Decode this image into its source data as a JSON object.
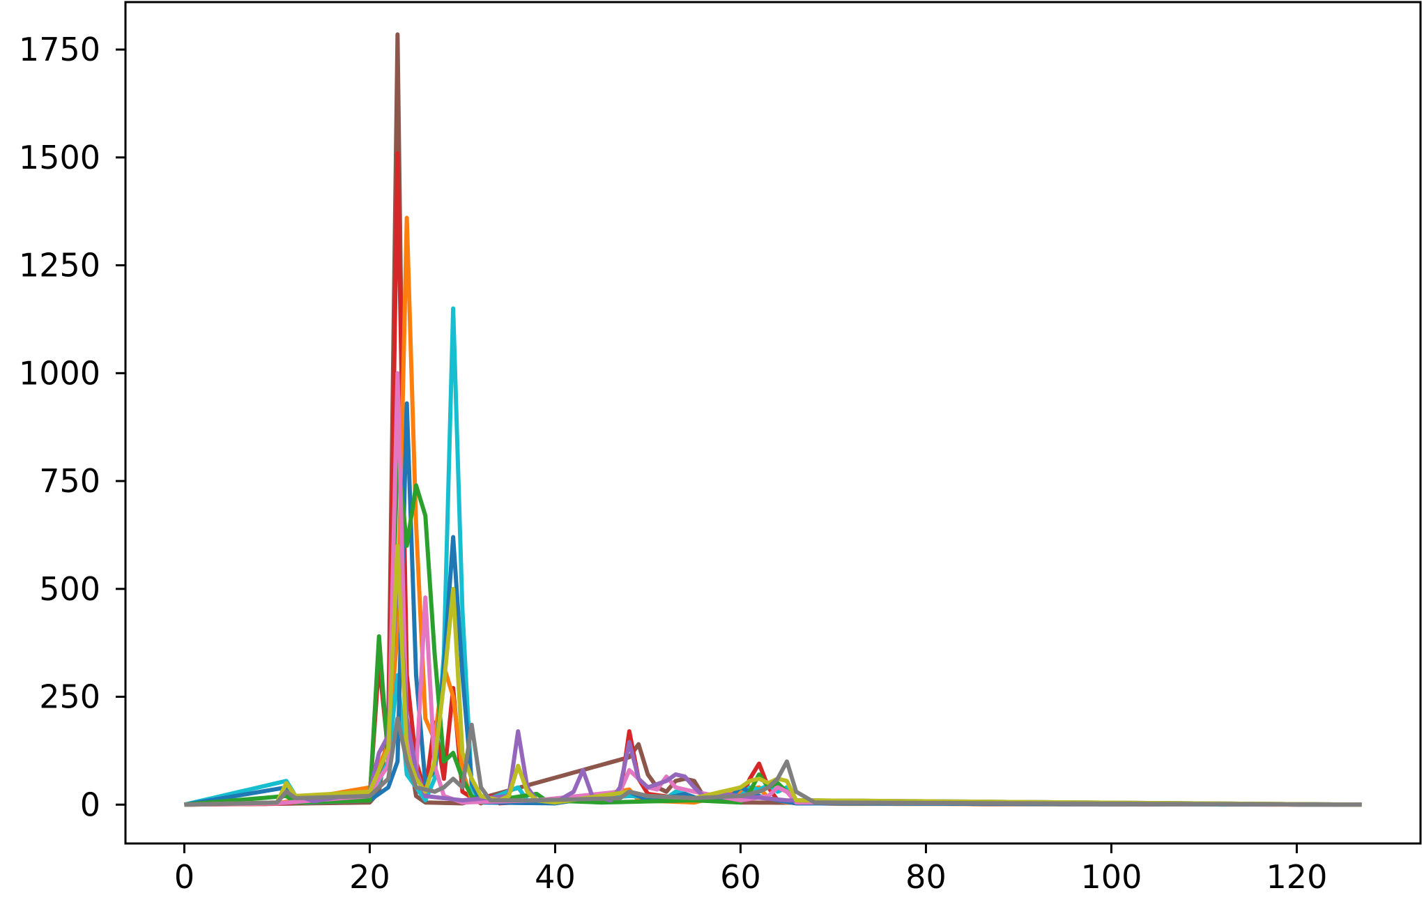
{
  "chart_data": {
    "type": "line",
    "title": "",
    "xlabel": "",
    "ylabel": "",
    "xlim": [
      -6.35,
      133.35
    ],
    "ylim": [
      -90,
      1860
    ],
    "x_ticks": [
      0,
      20,
      40,
      60,
      80,
      100,
      120
    ],
    "x_tick_labels": [
      "0",
      "20",
      "40",
      "60",
      "80",
      "100",
      "120"
    ],
    "y_ticks": [
      0,
      250,
      500,
      750,
      1000,
      1250,
      1500,
      1750
    ],
    "y_tick_labels": [
      "0",
      "250",
      "500",
      "750",
      "1000",
      "1250",
      "1500",
      "1750"
    ],
    "grid": false,
    "legend": "none",
    "x_range": [
      0,
      127
    ],
    "series": [
      {
        "color": "#8c564b",
        "points": [
          [
            0,
            0
          ],
          [
            10,
            2
          ],
          [
            20,
            5
          ],
          [
            21,
            30
          ],
          [
            22,
            180
          ],
          [
            23,
            1785
          ],
          [
            24,
            150
          ],
          [
            25,
            20
          ],
          [
            26,
            5
          ],
          [
            30,
            3
          ],
          [
            48,
            110
          ],
          [
            49,
            140
          ],
          [
            50,
            70
          ],
          [
            51,
            40
          ],
          [
            52,
            30
          ],
          [
            53,
            55
          ],
          [
            54,
            60
          ],
          [
            55,
            55
          ],
          [
            56,
            20
          ],
          [
            60,
            5
          ],
          [
            80,
            3
          ],
          [
            82,
            4
          ],
          [
            85,
            1
          ],
          [
            127,
            0
          ]
        ]
      },
      {
        "color": "#d62728",
        "points": [
          [
            0,
            0
          ],
          [
            10,
            2
          ],
          [
            20,
            20
          ],
          [
            21,
            330
          ],
          [
            22,
            120
          ],
          [
            23,
            1510
          ],
          [
            24,
            300
          ],
          [
            25,
            100
          ],
          [
            26,
            30
          ],
          [
            27,
            190
          ],
          [
            28,
            60
          ],
          [
            29,
            270
          ],
          [
            30,
            30
          ],
          [
            32,
            3
          ],
          [
            33,
            20
          ],
          [
            34,
            3
          ],
          [
            47,
            20
          ],
          [
            48,
            170
          ],
          [
            49,
            60
          ],
          [
            50,
            25
          ],
          [
            55,
            10
          ],
          [
            60,
            10
          ],
          [
            61,
            60
          ],
          [
            62,
            95
          ],
          [
            63,
            40
          ],
          [
            64,
            10
          ],
          [
            66,
            3
          ],
          [
            127,
            0
          ]
        ]
      },
      {
        "color": "#ff7f0e",
        "points": [
          [
            0,
            0
          ],
          [
            10,
            3
          ],
          [
            20,
            40
          ],
          [
            21,
            90
          ],
          [
            22,
            140
          ],
          [
            23,
            400
          ],
          [
            24,
            1360
          ],
          [
            25,
            650
          ],
          [
            26,
            200
          ],
          [
            27,
            150
          ],
          [
            28,
            320
          ],
          [
            29,
            250
          ],
          [
            30,
            80
          ],
          [
            31,
            10
          ],
          [
            35,
            5
          ],
          [
            40,
            5
          ],
          [
            48,
            35
          ],
          [
            49,
            10
          ],
          [
            55,
            5
          ],
          [
            62,
            40
          ],
          [
            63,
            15
          ],
          [
            65,
            5
          ],
          [
            70,
            2
          ],
          [
            127,
            0
          ]
        ]
      },
      {
        "color": "#17becf",
        "points": [
          [
            0,
            0
          ],
          [
            11,
            55
          ],
          [
            12,
            20
          ],
          [
            13,
            5
          ],
          [
            20,
            10
          ],
          [
            22,
            100
          ],
          [
            23,
            300
          ],
          [
            24,
            70
          ],
          [
            26,
            10
          ],
          [
            27,
            60
          ],
          [
            28,
            350
          ],
          [
            29,
            1150
          ],
          [
            30,
            450
          ],
          [
            31,
            40
          ],
          [
            32,
            5
          ],
          [
            36,
            40
          ],
          [
            37,
            10
          ],
          [
            40,
            5
          ],
          [
            48,
            20
          ],
          [
            52,
            15
          ],
          [
            53,
            30
          ],
          [
            54,
            25
          ],
          [
            55,
            10
          ],
          [
            60,
            20
          ],
          [
            61,
            40
          ],
          [
            62,
            35
          ],
          [
            63,
            45
          ],
          [
            64,
            30
          ],
          [
            65,
            40
          ],
          [
            66,
            10
          ],
          [
            70,
            3
          ],
          [
            127,
            0
          ]
        ]
      },
      {
        "color": "#1f77b4",
        "points": [
          [
            0,
            0
          ],
          [
            11,
            40
          ],
          [
            12,
            10
          ],
          [
            20,
            10
          ],
          [
            22,
            40
          ],
          [
            23,
            100
          ],
          [
            24,
            930
          ],
          [
            25,
            300
          ],
          [
            26,
            50
          ],
          [
            27,
            80
          ],
          [
            28,
            320
          ],
          [
            29,
            620
          ],
          [
            30,
            300
          ],
          [
            31,
            50
          ],
          [
            32,
            5
          ],
          [
            40,
            3
          ],
          [
            48,
            30
          ],
          [
            50,
            10
          ],
          [
            53,
            20
          ],
          [
            54,
            25
          ],
          [
            56,
            10
          ],
          [
            59,
            20
          ],
          [
            60,
            40
          ],
          [
            61,
            30
          ],
          [
            62,
            20
          ],
          [
            63,
            15
          ],
          [
            64,
            10
          ],
          [
            66,
            3
          ],
          [
            127,
            0
          ]
        ]
      },
      {
        "color": "#2ca02c",
        "points": [
          [
            0,
            0
          ],
          [
            11,
            20
          ],
          [
            12,
            5
          ],
          [
            20,
            10
          ],
          [
            21,
            390
          ],
          [
            22,
            100
          ],
          [
            23,
            820
          ],
          [
            24,
            600
          ],
          [
            25,
            740
          ],
          [
            26,
            670
          ],
          [
            27,
            350
          ],
          [
            28,
            100
          ],
          [
            29,
            120
          ],
          [
            30,
            60
          ],
          [
            31,
            20
          ],
          [
            32,
            5
          ],
          [
            38,
            25
          ],
          [
            39,
            10
          ],
          [
            45,
            5
          ],
          [
            55,
            10
          ],
          [
            60,
            5
          ],
          [
            61,
            30
          ],
          [
            62,
            70
          ],
          [
            63,
            40
          ],
          [
            64,
            50
          ],
          [
            65,
            30
          ],
          [
            66,
            10
          ],
          [
            127,
            0
          ]
        ]
      },
      {
        "color": "#e377c2",
        "points": [
          [
            0,
            0
          ],
          [
            10,
            3
          ],
          [
            20,
            20
          ],
          [
            21,
            60
          ],
          [
            22,
            90
          ],
          [
            23,
            1000
          ],
          [
            24,
            160
          ],
          [
            25,
            70
          ],
          [
            26,
            480
          ],
          [
            27,
            90
          ],
          [
            28,
            20
          ],
          [
            30,
            5
          ],
          [
            38,
            10
          ],
          [
            47,
            30
          ],
          [
            48,
            80
          ],
          [
            49,
            60
          ],
          [
            50,
            40
          ],
          [
            51,
            35
          ],
          [
            52,
            65
          ],
          [
            53,
            40
          ],
          [
            54,
            35
          ],
          [
            55,
            30
          ],
          [
            60,
            10
          ],
          [
            63,
            20
          ],
          [
            64,
            40
          ],
          [
            65,
            30
          ],
          [
            66,
            5
          ],
          [
            127,
            0
          ]
        ]
      },
      {
        "color": "#9467bd",
        "points": [
          [
            0,
            0
          ],
          [
            10,
            5
          ],
          [
            11,
            30
          ],
          [
            12,
            20
          ],
          [
            13,
            15
          ],
          [
            14,
            8
          ],
          [
            20,
            30
          ],
          [
            21,
            120
          ],
          [
            22,
            160
          ],
          [
            23,
            540
          ],
          [
            24,
            200
          ],
          [
            25,
            80
          ],
          [
            26,
            20
          ],
          [
            30,
            10
          ],
          [
            35,
            20
          ],
          [
            36,
            170
          ],
          [
            37,
            40
          ],
          [
            38,
            10
          ],
          [
            40,
            5
          ],
          [
            42,
            30
          ],
          [
            43,
            80
          ],
          [
            44,
            20
          ],
          [
            46,
            10
          ],
          [
            47,
            40
          ],
          [
            48,
            145
          ],
          [
            49,
            60
          ],
          [
            50,
            40
          ],
          [
            52,
            55
          ],
          [
            53,
            70
          ],
          [
            54,
            65
          ],
          [
            55,
            40
          ],
          [
            56,
            20
          ],
          [
            58,
            25
          ],
          [
            60,
            20
          ],
          [
            65,
            10
          ],
          [
            127,
            0
          ]
        ]
      },
      {
        "color": "#bcbd22",
        "points": [
          [
            0,
            0
          ],
          [
            10,
            5
          ],
          [
            11,
            50
          ],
          [
            12,
            20
          ],
          [
            20,
            30
          ],
          [
            21,
            80
          ],
          [
            22,
            130
          ],
          [
            23,
            600
          ],
          [
            24,
            120
          ],
          [
            25,
            60
          ],
          [
            26,
            30
          ],
          [
            27,
            100
          ],
          [
            28,
            280
          ],
          [
            29,
            500
          ],
          [
            30,
            120
          ],
          [
            31,
            60
          ],
          [
            32,
            20
          ],
          [
            34,
            10
          ],
          [
            35,
            20
          ],
          [
            36,
            90
          ],
          [
            37,
            30
          ],
          [
            38,
            10
          ],
          [
            40,
            5
          ],
          [
            48,
            30
          ],
          [
            50,
            20
          ],
          [
            55,
            15
          ],
          [
            60,
            40
          ],
          [
            61,
            55
          ],
          [
            62,
            60
          ],
          [
            63,
            50
          ],
          [
            64,
            60
          ],
          [
            65,
            55
          ],
          [
            66,
            10
          ],
          [
            127,
            0
          ]
        ]
      },
      {
        "color": "#7f7f7f",
        "points": [
          [
            0,
            0
          ],
          [
            10,
            5
          ],
          [
            11,
            30
          ],
          [
            12,
            15
          ],
          [
            20,
            20
          ],
          [
            22,
            60
          ],
          [
            23,
            200
          ],
          [
            24,
            100
          ],
          [
            25,
            40
          ],
          [
            27,
            30
          ],
          [
            28,
            40
          ],
          [
            29,
            60
          ],
          [
            30,
            40
          ],
          [
            31,
            185
          ],
          [
            32,
            40
          ],
          [
            33,
            10
          ],
          [
            38,
            10
          ],
          [
            47,
            15
          ],
          [
            48,
            30
          ],
          [
            50,
            20
          ],
          [
            55,
            15
          ],
          [
            60,
            20
          ],
          [
            62,
            30
          ],
          [
            63,
            40
          ],
          [
            64,
            60
          ],
          [
            65,
            100
          ],
          [
            66,
            30
          ],
          [
            68,
            5
          ],
          [
            127,
            0
          ]
        ]
      }
    ]
  }
}
